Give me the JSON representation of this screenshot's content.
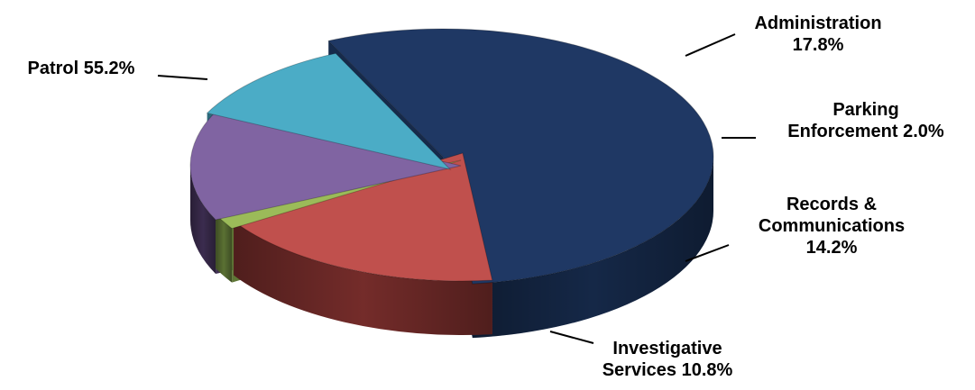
{
  "chart_data": {
    "type": "pie",
    "title": "",
    "legend": "none",
    "slices": [
      {
        "name": "Patrol",
        "value": 55.2,
        "label_lines": [
          "Patrol 55.2%"
        ],
        "color": "#1f3864",
        "side_color": "#162a4b"
      },
      {
        "name": "Administration",
        "value": 17.8,
        "label_lines": [
          "Administration",
          "17.8%"
        ],
        "color": "#c0504d",
        "side_color": "#7a2e2c"
      },
      {
        "name": "Parking Enforcement",
        "value": 2.0,
        "label_lines": [
          "Parking",
          "Enforcement 2.0%"
        ],
        "color": "#9bbb59",
        "side_color": "#5f7636"
      },
      {
        "name": "Records & Communications",
        "value": 14.2,
        "label_lines": [
          "Records &",
          "Communications",
          "14.2%"
        ],
        "color": "#8064a2",
        "side_color": "#3e2e52"
      },
      {
        "name": "Investigative Services",
        "value": 10.8,
        "label_lines": [
          "Investigative",
          "Services 10.8%"
        ],
        "color": "#4bacc6",
        "side_color": "#2c6a7c"
      }
    ]
  }
}
